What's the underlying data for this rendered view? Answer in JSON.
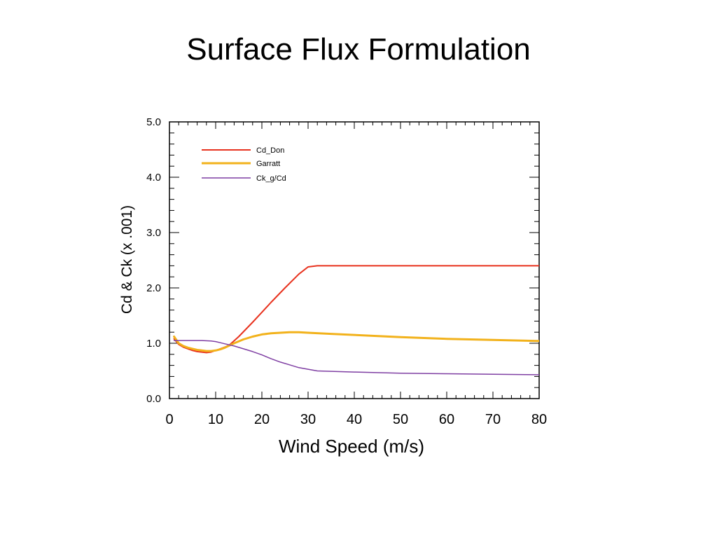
{
  "slide": {
    "title": "Surface Flux Formulation"
  },
  "chart_data": {
    "type": "line",
    "xlabel": "Wind Speed (m/s)",
    "ylabel": "Cd & Ck (x .001)",
    "xlim": [
      0,
      80
    ],
    "ylim": [
      0,
      5
    ],
    "xticks": [
      0,
      10,
      20,
      30,
      40,
      50,
      60,
      70,
      80
    ],
    "xtick_labels": [
      "0",
      "10",
      "20",
      "30",
      "40",
      "50",
      "60",
      "70",
      "80"
    ],
    "yticks": [
      0,
      1,
      2,
      3,
      4,
      5
    ],
    "ytick_labels": [
      "0.0",
      "1.0",
      "2.0",
      "3.0",
      "4.0",
      "5.0"
    ],
    "grid": false,
    "legend_position": "top-left",
    "series": [
      {
        "name": "Cd_Don",
        "color": "#e8321e",
        "x": [
          1,
          2,
          3,
          4,
          5,
          6,
          7,
          8,
          9,
          10,
          11,
          12,
          13,
          15,
          18,
          20,
          22,
          25,
          28,
          30,
          32,
          32.5,
          40,
          50,
          60,
          70,
          80
        ],
        "y": [
          1.08,
          0.98,
          0.93,
          0.9,
          0.87,
          0.85,
          0.84,
          0.83,
          0.84,
          0.87,
          0.9,
          0.93,
          0.97,
          1.12,
          1.38,
          1.56,
          1.74,
          2.0,
          2.25,
          2.38,
          2.4,
          2.4,
          2.4,
          2.4,
          2.4,
          2.4,
          2.4
        ]
      },
      {
        "name": "Garratt",
        "color": "#f2b21c",
        "x": [
          1,
          2,
          3,
          4,
          5,
          6,
          7,
          8,
          9,
          10,
          11,
          12,
          13,
          14,
          16,
          18,
          20,
          22,
          24,
          26,
          28,
          30,
          35,
          40,
          50,
          60,
          70,
          80
        ],
        "y": [
          1.12,
          1.0,
          0.95,
          0.92,
          0.9,
          0.88,
          0.87,
          0.86,
          0.86,
          0.87,
          0.89,
          0.92,
          0.96,
          1.0,
          1.07,
          1.12,
          1.16,
          1.18,
          1.19,
          1.2,
          1.2,
          1.19,
          1.17,
          1.15,
          1.11,
          1.08,
          1.06,
          1.04
        ]
      },
      {
        "name": "Ck_g/Cd",
        "color": "#7f3fa3",
        "x": [
          1,
          3,
          5,
          7,
          9,
          10,
          11,
          12,
          14,
          16,
          18,
          20,
          22,
          24,
          26,
          28,
          30,
          32,
          40,
          50,
          60,
          70,
          80
        ],
        "y": [
          1.05,
          1.05,
          1.05,
          1.05,
          1.04,
          1.03,
          1.01,
          0.99,
          0.95,
          0.9,
          0.85,
          0.79,
          0.72,
          0.66,
          0.61,
          0.56,
          0.53,
          0.5,
          0.48,
          0.46,
          0.45,
          0.44,
          0.43
        ]
      }
    ]
  }
}
